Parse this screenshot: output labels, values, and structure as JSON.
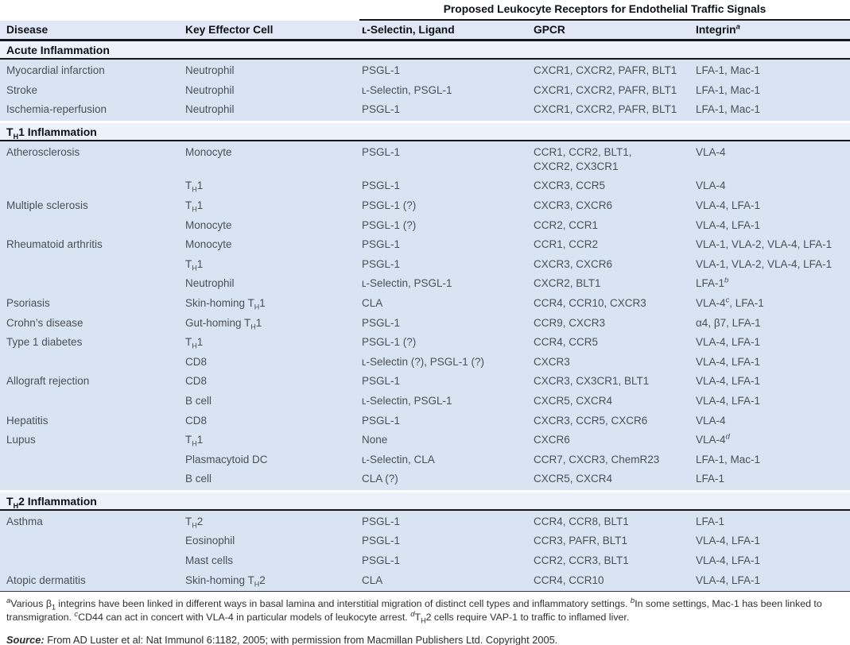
{
  "table": {
    "span_header": "Proposed Leukocyte Receptors for Endothelial Traffic Signals",
    "columns": [
      "Disease",
      "Key Effector Cell",
      "ʟ-Selectin, Ligand",
      "GPCR",
      "Integrin^{a}"
    ],
    "sections": [
      {
        "title": "Acute Inflammation",
        "rows": [
          [
            "Myocardial infarction",
            "Neutrophil",
            "PSGL-1",
            "CXCR1, CXCR2, PAFR, BLT1",
            "LFA-1, Mac-1"
          ],
          [
            "Stroke",
            "Neutrophil",
            "ʟ-Selectin, PSGL-1",
            "CXCR1, CXCR2, PAFR, BLT1",
            "LFA-1, Mac-1"
          ],
          [
            "Ischemia-reperfusion",
            "Neutrophil",
            "PSGL-1",
            "CXCR1, CXCR2, PAFR, BLT1",
            "LFA-1, Mac-1"
          ]
        ]
      },
      {
        "title": "T_{H}1 Inflammation",
        "rows": [
          [
            "Atherosclerosis",
            "Monocyte",
            "PSGL-1",
            "CCR1, CCR2, BLT1,\nCXCR2, CX3CR1",
            "VLA-4"
          ],
          [
            "",
            "T_{H}1",
            "PSGL-1",
            "CXCR3, CCR5",
            "VLA-4"
          ],
          [
            "Multiple sclerosis",
            "T_{H}1",
            "PSGL-1 (?)",
            "CXCR3, CXCR6",
            "VLA-4, LFA-1"
          ],
          [
            "",
            "Monocyte",
            "PSGL-1 (?)",
            "CCR2, CCR1",
            "VLA-4, LFA-1"
          ],
          [
            "Rheumatoid arthritis",
            "Monocyte",
            "PSGL-1",
            "CCR1, CCR2",
            "VLA-1, VLA-2, VLA-4, LFA-1"
          ],
          [
            "",
            "T_{H}1",
            "PSGL-1",
            "CXCR3, CXCR6",
            "VLA-1, VLA-2, VLA-4, LFA-1"
          ],
          [
            "",
            "Neutrophil",
            "ʟ-Selectin, PSGL-1",
            "CXCR2, BLT1",
            "LFA-1^{b}"
          ],
          [
            "Psoriasis",
            "Skin-homing T_{H}1",
            "CLA",
            "CCR4, CCR10, CXCR3",
            "VLA-4^{c}, LFA-1"
          ],
          [
            "Crohn’s disease",
            "Gut-homing T_{H}1",
            "PSGL-1",
            "CCR9, CXCR3",
            "α4, β7, LFA-1"
          ],
          [
            "Type 1 diabetes",
            "T_{H}1",
            "PSGL-1 (?)",
            "CCR4, CCR5",
            "VLA-4, LFA-1"
          ],
          [
            "",
            "CD8",
            "ʟ-Selectin (?), PSGL-1 (?)",
            "CXCR3",
            "VLA-4, LFA-1"
          ],
          [
            "Allograft rejection",
            "CD8",
            "PSGL-1",
            "CXCR3, CX3CR1, BLT1",
            "VLA-4, LFA-1"
          ],
          [
            "",
            "B cell",
            "ʟ-Selectin, PSGL-1",
            "CXCR5, CXCR4",
            "VLA-4, LFA-1"
          ],
          [
            "Hepatitis",
            "CD8",
            "PSGL-1",
            "CXCR3, CCR5, CXCR6",
            "VLA-4"
          ],
          [
            "Lupus",
            "T_{H}1",
            "None",
            "CXCR6",
            "VLA-4^{d}"
          ],
          [
            "",
            "Plasmacytoid DC",
            "ʟ-Selectin, CLA",
            "CCR7, CXCR3, ChemR23",
            "LFA-1, Mac-1"
          ],
          [
            "",
            "B cell",
            "CLA (?)",
            "CXCR5, CXCR4",
            "LFA-1"
          ]
        ]
      },
      {
        "title": "T_{H}2 Inflammation",
        "rows": [
          [
            "Asthma",
            "T_{H}2",
            "PSGL-1",
            "CCR4, CCR8, BLT1",
            "LFA-1"
          ],
          [
            "",
            "Eosinophil",
            "PSGL-1",
            "CCR3, PAFR, BLT1",
            "VLA-4, LFA-1"
          ],
          [
            "",
            "Mast cells",
            "PSGL-1",
            "CCR2, CCR3, BLT1",
            "VLA-4, LFA-1"
          ],
          [
            "Atopic dermatitis",
            "Skin-homing T_{H}2",
            "CLA",
            "CCR4, CCR10",
            "VLA-4, LFA-1"
          ]
        ]
      }
    ]
  },
  "footnotes": {
    "text": "^{a}Various β_{1} integrins have been linked in different ways in basal lamina and interstitial migration of distinct cell types and inflammatory settings.  ^{b}In some settings, Mac-1 has been linked to transmigration.  ^{c}CD44 can act in concert with VLA-4 in particular models of leukocyte arrest.  ^{d}T_{H}2 cells require VAP-1 to traffic to inflamed liver."
  },
  "source": {
    "label": "Source:",
    "text": " From AD Luster et al: Nat Immunol 6:1182, 2005; with permission from Macmillan Publishers Ltd. Copyright 2005."
  },
  "colors": {
    "data_row_bg": "#d8e4f1",
    "section_header_bg": "#ecf2fa",
    "column_header_bg": "#e1e8f5",
    "border": "#15151d",
    "data_text": "#4a5058",
    "heading_text": "#0e1118"
  }
}
